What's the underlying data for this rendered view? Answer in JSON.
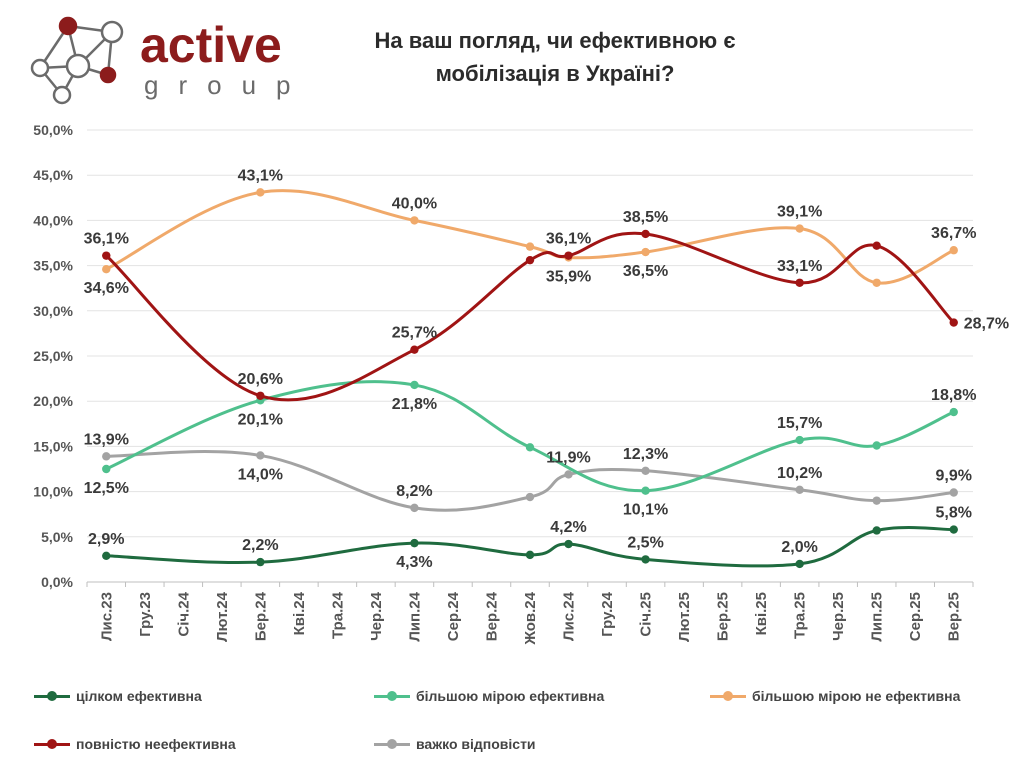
{
  "header": {
    "logo_word": "active",
    "logo_sub": "group",
    "title_line1": "На ваш погляд, чи ефективною є",
    "title_line2": "мобілізація в Україні?"
  },
  "colors": {
    "logo_red": "#8c1c1c",
    "logo_gray": "#6b6b6b"
  },
  "chart_data": {
    "type": "line",
    "title": "На ваш погляд, чи ефективною є мобілізація в Україні?",
    "x": [
      "Лис.23",
      "Гру.23",
      "Січ.24",
      "Лют.24",
      "Бер.24",
      "Кві.24",
      "Тра.24",
      "Чер.24",
      "Лип.24",
      "Сер.24",
      "Вер.24",
      "Жов.24",
      "Лис.24",
      "Гру.24",
      "Січ.25",
      "Лют.25",
      "Бер.25",
      "Кві.25",
      "Тра.25",
      "Чер.25",
      "Лип.25",
      "Сер.25",
      "Вер.25"
    ],
    "y_ticks": [
      "0,0%",
      "5,0%",
      "10,0%",
      "15,0%",
      "20,0%",
      "25,0%",
      "30,0%",
      "35,0%",
      "40,0%",
      "45,0%",
      "50,0%"
    ],
    "ylim": [
      0,
      50
    ],
    "grid": true,
    "legend_position": "bottom",
    "series": [
      {
        "name": "цілком ефективна",
        "color": "#1f6b3f",
        "points": [
          [
            0,
            2.9
          ],
          [
            4,
            2.2
          ],
          [
            8,
            4.3
          ],
          [
            11,
            3.0
          ],
          [
            12,
            4.2
          ],
          [
            14,
            2.5
          ],
          [
            18,
            2.0
          ],
          [
            20,
            5.7
          ],
          [
            22,
            5.8
          ]
        ],
        "labels": [
          {
            "i": 0,
            "text": "2,9%",
            "pos": "above"
          },
          {
            "i": 4,
            "text": "2,2%",
            "pos": "above"
          },
          {
            "i": 8,
            "text": "4,3%",
            "pos": "below"
          },
          {
            "i": 12,
            "text": "4,2%",
            "pos": "above"
          },
          {
            "i": 14,
            "text": "2,5%",
            "pos": "above"
          },
          {
            "i": 18,
            "text": "2,0%",
            "pos": "above"
          },
          {
            "i": 22,
            "text": "5,8%",
            "pos": "above"
          }
        ]
      },
      {
        "name": "більшою мірою ефективна",
        "color": "#4fc08d",
        "points": [
          [
            0,
            12.5
          ],
          [
            4,
            20.1
          ],
          [
            8,
            21.8
          ],
          [
            11,
            14.9
          ],
          [
            14,
            10.1
          ],
          [
            18,
            15.7
          ],
          [
            20,
            15.1
          ],
          [
            22,
            18.8
          ]
        ],
        "labels": [
          {
            "i": 0,
            "text": "12,5%",
            "pos": "below"
          },
          {
            "i": 4,
            "text": "20,1%",
            "pos": "below"
          },
          {
            "i": 8,
            "text": "21,8%",
            "pos": "below"
          },
          {
            "i": 14,
            "text": "10,1%",
            "pos": "below"
          },
          {
            "i": 18,
            "text": "15,7%",
            "pos": "above"
          },
          {
            "i": 22,
            "text": "18,8%",
            "pos": "above"
          }
        ]
      },
      {
        "name": "більшою мірою не ефективна",
        "color": "#f0a96a",
        "points": [
          [
            0,
            34.6
          ],
          [
            4,
            43.1
          ],
          [
            8,
            40.0
          ],
          [
            11,
            37.1
          ],
          [
            12,
            35.9
          ],
          [
            14,
            36.5
          ],
          [
            18,
            39.1
          ],
          [
            20,
            33.1
          ],
          [
            22,
            36.7
          ]
        ],
        "labels": [
          {
            "i": 0,
            "text": "34,6%",
            "pos": "below"
          },
          {
            "i": 4,
            "text": "43,1%",
            "pos": "above"
          },
          {
            "i": 8,
            "text": "40,0%",
            "pos": "above"
          },
          {
            "i": 12,
            "text": "35,9%",
            "pos": "below"
          },
          {
            "i": 14,
            "text": "36,5%",
            "pos": "below"
          },
          {
            "i": 18,
            "text": "39,1%",
            "pos": "above"
          },
          {
            "i": 22,
            "text": "36,7%",
            "pos": "above"
          }
        ]
      },
      {
        "name": "повністю неефективна",
        "color": "#a01414",
        "points": [
          [
            0,
            36.1
          ],
          [
            4,
            20.6
          ],
          [
            8,
            25.7
          ],
          [
            11,
            35.6
          ],
          [
            12,
            36.1
          ],
          [
            14,
            38.5
          ],
          [
            18,
            33.1
          ],
          [
            20,
            37.2
          ],
          [
            22,
            28.7
          ]
        ],
        "labels": [
          {
            "i": 0,
            "text": "36,1%",
            "pos": "above"
          },
          {
            "i": 4,
            "text": "20,6%",
            "pos": "above"
          },
          {
            "i": 8,
            "text": "25,7%",
            "pos": "above"
          },
          {
            "i": 12,
            "text": "36,1%",
            "pos": "above"
          },
          {
            "i": 14,
            "text": "38,5%",
            "pos": "above"
          },
          {
            "i": 18,
            "text": "33,1%",
            "pos": "above"
          },
          {
            "i": 22,
            "text": "28,7%",
            "pos": "right"
          }
        ]
      },
      {
        "name": "важко відповісти",
        "color": "#a3a3a3",
        "points": [
          [
            0,
            13.9
          ],
          [
            4,
            14.0
          ],
          [
            8,
            8.2
          ],
          [
            11,
            9.4
          ],
          [
            12,
            11.9
          ],
          [
            14,
            12.3
          ],
          [
            18,
            10.2
          ],
          [
            20,
            9.0
          ],
          [
            22,
            9.9
          ]
        ],
        "labels": [
          {
            "i": 0,
            "text": "13,9%",
            "pos": "above"
          },
          {
            "i": 4,
            "text": "14,0%",
            "pos": "below"
          },
          {
            "i": 8,
            "text": "8,2%",
            "pos": "above"
          },
          {
            "i": 12,
            "text": "11,9%",
            "pos": "above"
          },
          {
            "i": 14,
            "text": "12,3%",
            "pos": "above"
          },
          {
            "i": 18,
            "text": "10,2%",
            "pos": "above"
          },
          {
            "i": 22,
            "text": "9,9%",
            "pos": "above"
          }
        ]
      }
    ]
  }
}
